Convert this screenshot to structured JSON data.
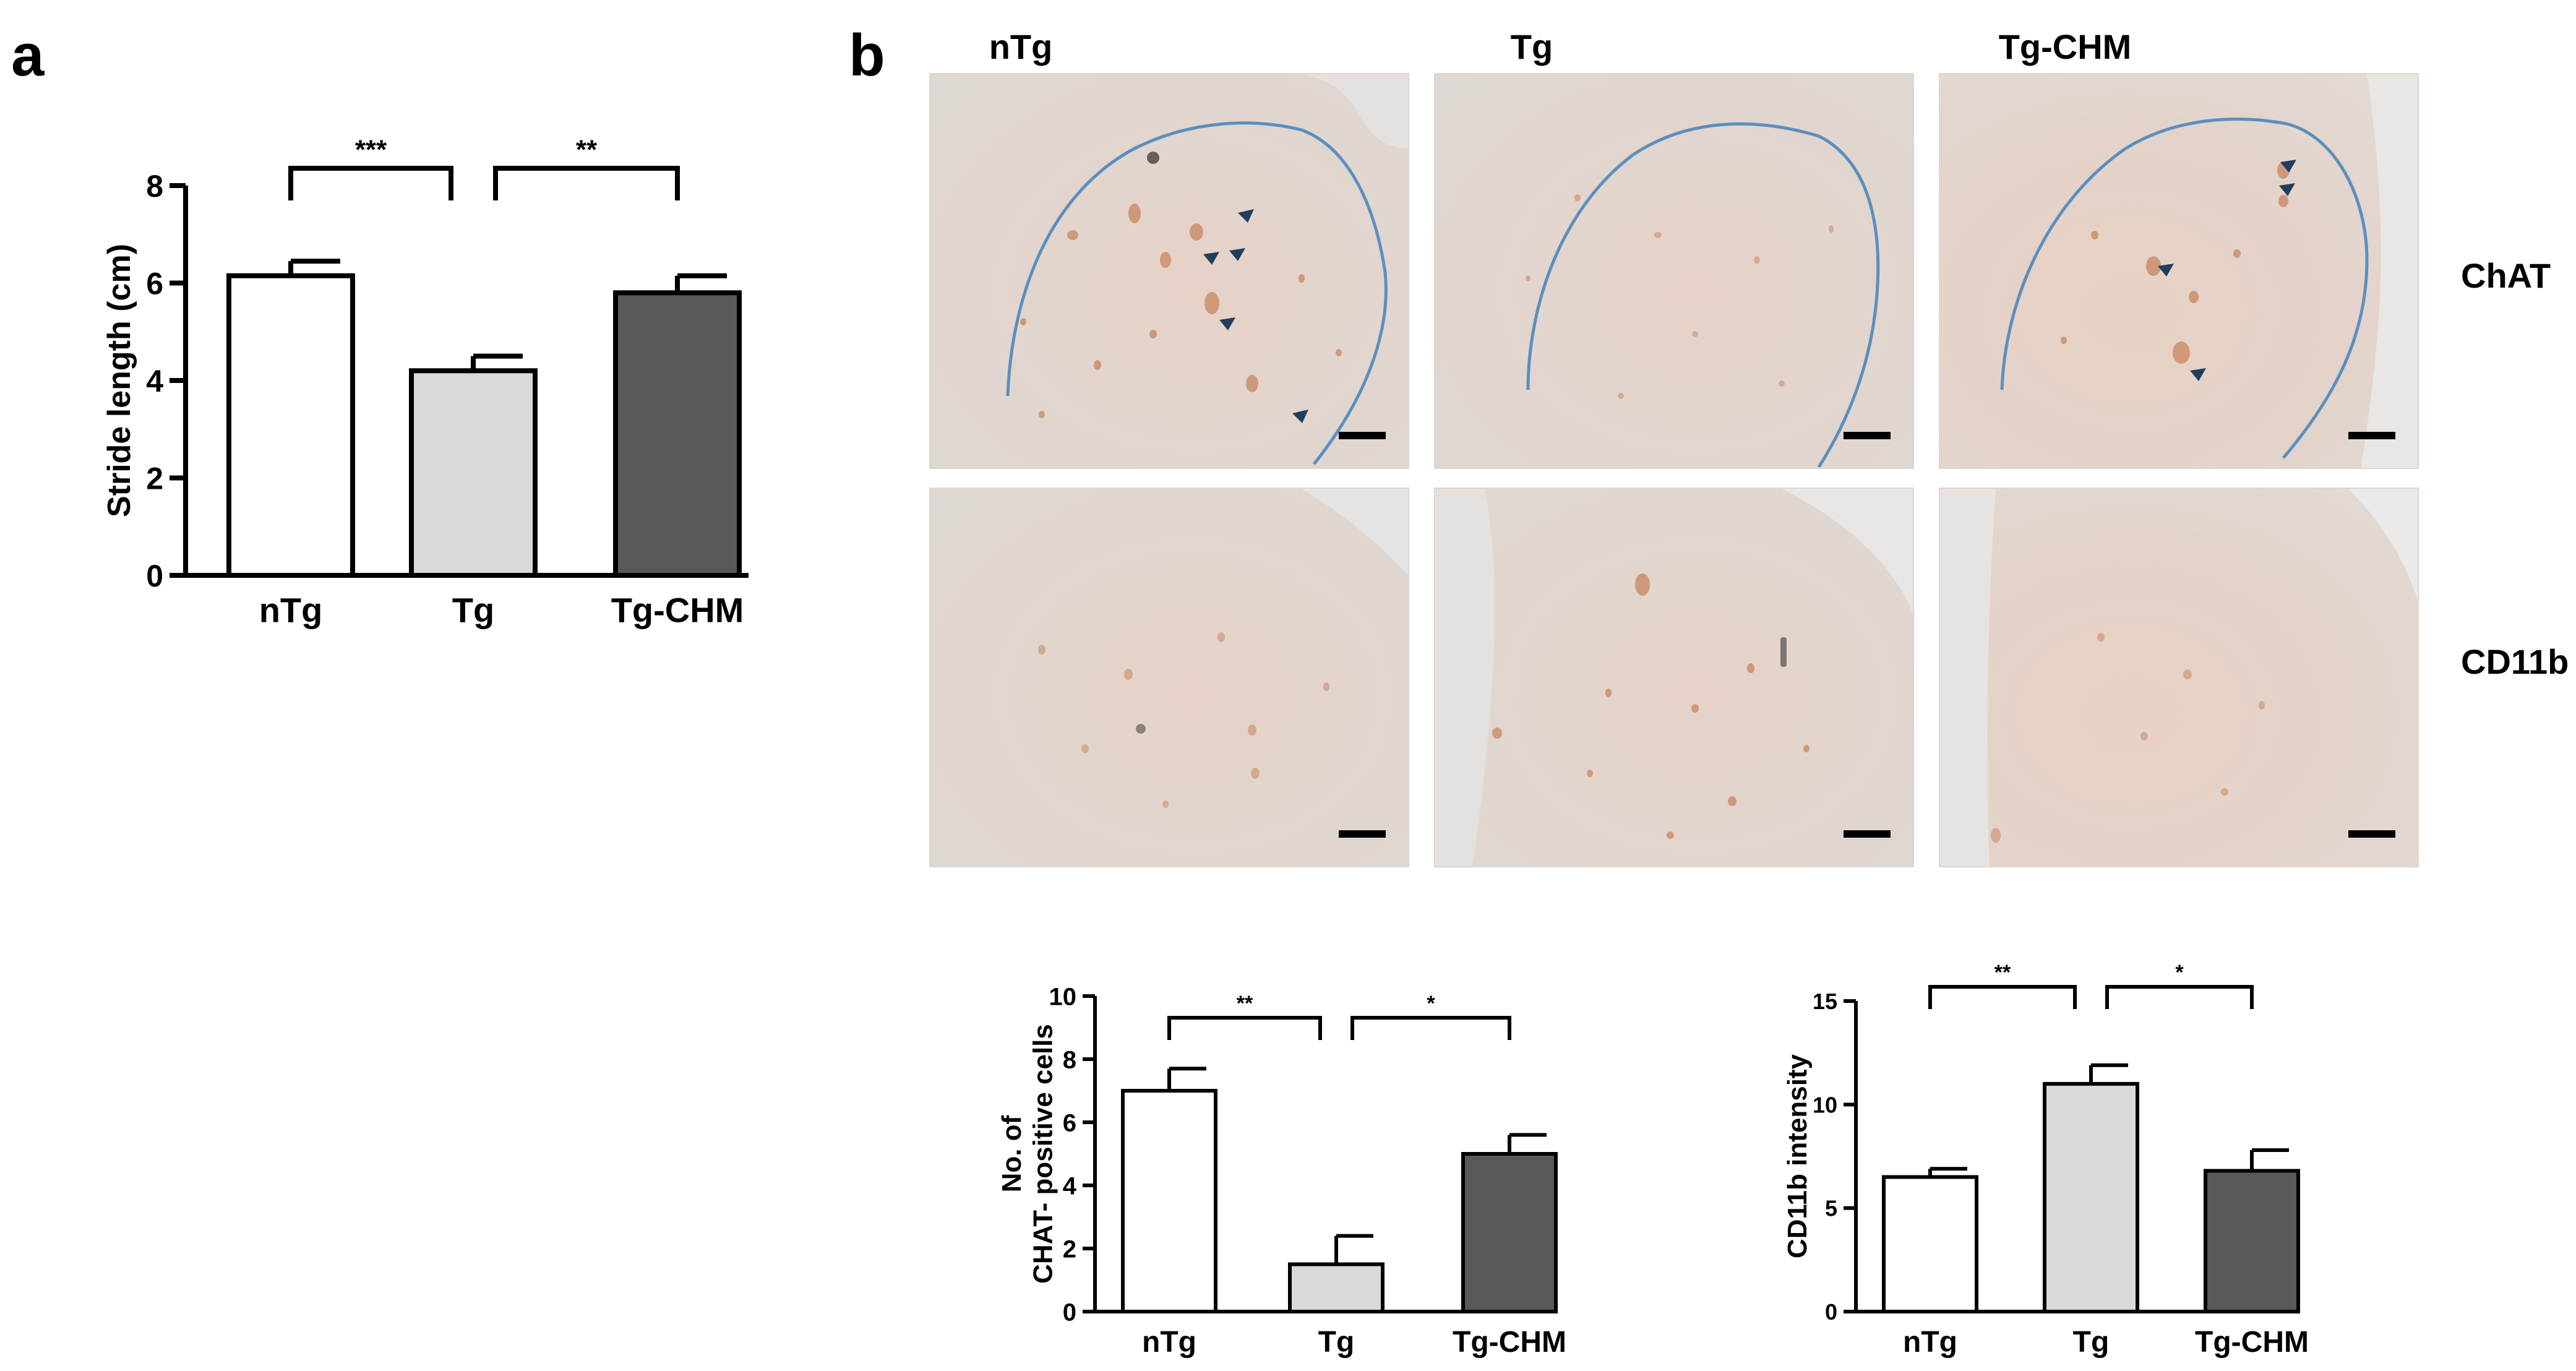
{
  "panels": {
    "a": "a",
    "b": "b"
  },
  "micrographs": {
    "columns": [
      "nTg",
      "Tg",
      "Tg-CHM"
    ],
    "rows": [
      "ChAT",
      "CD11b"
    ]
  },
  "colors": {
    "bar_fill": [
      "#ffffff",
      "#d9d9d9",
      "#595959"
    ],
    "outline": "#5b8fbe",
    "arrowhead": "#1f3f5c",
    "stain": "#c8865e"
  },
  "icons": {
    "arrowhead": "arrowhead-marker-icon",
    "scalebar": "scale-bar"
  },
  "chart_data": [
    {
      "type": "bar",
      "categories": [
        "nTg",
        "Tg",
        "Tg-CHM"
      ],
      "values": [
        6.15,
        4.2,
        5.8
      ],
      "errors": [
        0.3,
        0.3,
        0.35
      ],
      "ylabel": "Stride length (cm)",
      "ylim": [
        0,
        8
      ],
      "yticks": [
        "0",
        "2",
        "4",
        "6",
        "8"
      ],
      "significance": [
        {
          "from": 0,
          "to": 1,
          "label": "***"
        },
        {
          "from": 1,
          "to": 2,
          "label": "**"
        }
      ]
    },
    {
      "type": "bar",
      "categories": [
        "nTg",
        "Tg",
        "Tg-CHM"
      ],
      "values": [
        7.0,
        1.5,
        5.0
      ],
      "errors": [
        0.7,
        0.9,
        0.6
      ],
      "ylabel": [
        "No. of",
        "CHAT- positive cells"
      ],
      "ylim": [
        0,
        10
      ],
      "yticks": [
        "0",
        "2",
        "4",
        "6",
        "8",
        "10"
      ],
      "significance": [
        {
          "from": 0,
          "to": 1,
          "label": "**"
        },
        {
          "from": 1,
          "to": 2,
          "label": "*"
        }
      ]
    },
    {
      "type": "bar",
      "categories": [
        "nTg",
        "Tg",
        "Tg-CHM"
      ],
      "values": [
        6.5,
        11.0,
        6.8
      ],
      "errors": [
        0.4,
        0.9,
        1.0
      ],
      "ylabel": "CD11b intensity",
      "ylim": [
        0,
        15
      ],
      "yticks": [
        "0",
        "5",
        "10",
        "15"
      ],
      "significance": [
        {
          "from": 0,
          "to": 1,
          "label": "**"
        },
        {
          "from": 1,
          "to": 2,
          "label": "*"
        }
      ]
    }
  ]
}
